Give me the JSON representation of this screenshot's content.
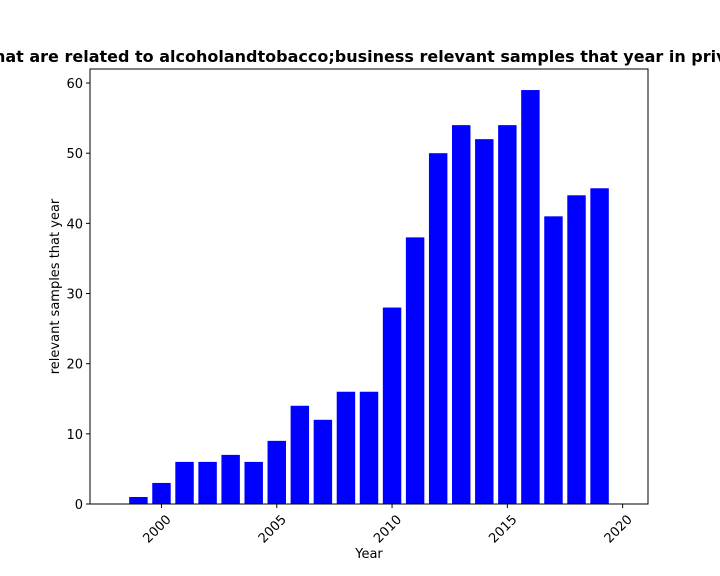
{
  "chart_data": {
    "type": "bar",
    "title": "Samples that are related to alcoholandtobacco;business relevant samples that year in privacy policies",
    "xlabel": "Year",
    "ylabel": "relevant samples that year",
    "x": [
      1999,
      2000,
      2001,
      2002,
      2003,
      2004,
      2005,
      2006,
      2007,
      2008,
      2009,
      2010,
      2011,
      2012,
      2013,
      2014,
      2015,
      2016,
      2017,
      2018,
      2019
    ],
    "values": [
      1,
      3,
      6,
      6,
      7,
      6,
      9,
      14,
      12,
      16,
      16,
      28,
      38,
      50,
      54,
      52,
      54,
      59,
      41,
      44,
      45
    ],
    "xlim": [
      1996.9,
      2021.1
    ],
    "ylim": [
      0,
      62
    ],
    "xticks": [
      2000,
      2005,
      2010,
      2015,
      2020
    ],
    "yticks": [
      0,
      10,
      20,
      30,
      40,
      50,
      60
    ],
    "bar_color": "#0000ff",
    "grid": false,
    "legend": "none"
  }
}
